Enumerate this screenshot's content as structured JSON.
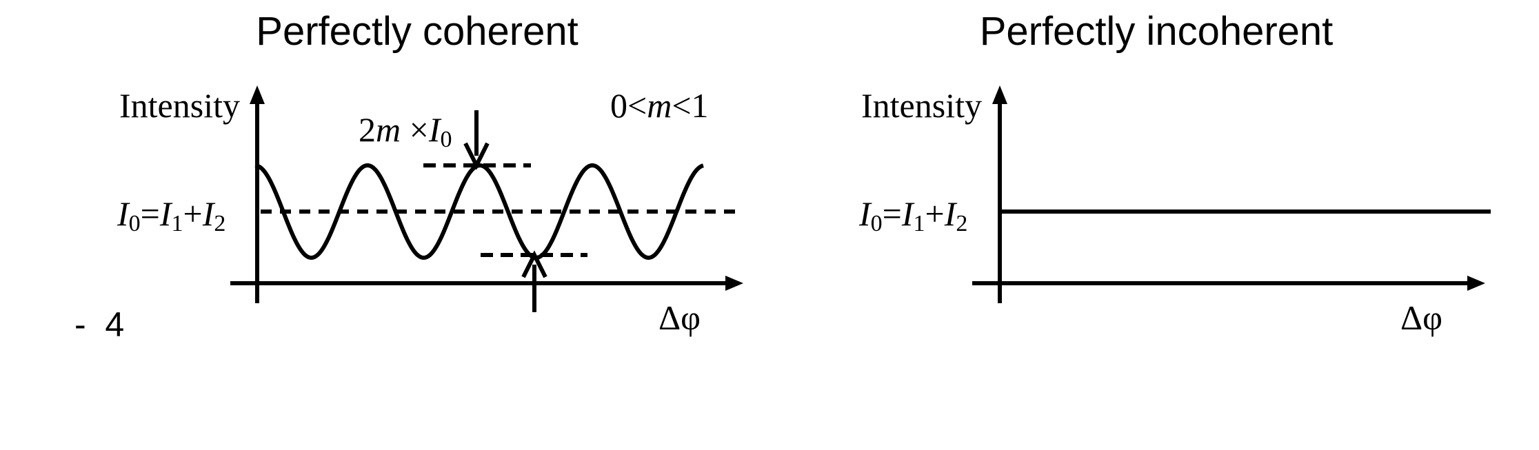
{
  "left_panel": {
    "title": "Perfectly coherent",
    "y_axis_label": "Intensity",
    "x_axis_label": "Δφ",
    "mean_level_label": {
      "I0": "I",
      "I0_sub": "0",
      "eq": "=",
      "I1": "I",
      "I1_sub": "1",
      "plus": "+",
      "I2": "I",
      "I2_sub": "2"
    },
    "amplitude_label": {
      "prefix": "2",
      "m": "m",
      "times": " ×",
      "I": "I",
      "I_sub": "0"
    },
    "condition_label": {
      "zero": "0<",
      "m": "m",
      "one": "<1"
    }
  },
  "right_panel": {
    "title": "Perfectly incoherent",
    "y_axis_label": "Intensity",
    "x_axis_label": "Δφ",
    "mean_level_label": {
      "I0": "I",
      "I0_sub": "0",
      "eq": "=",
      "I1": "I",
      "I1_sub": "1",
      "plus": "+",
      "I2": "I",
      "I2_sub": "2"
    }
  },
  "page_number": "-  4",
  "colors": {
    "stroke": "#000000",
    "background": "#ffffff"
  }
}
